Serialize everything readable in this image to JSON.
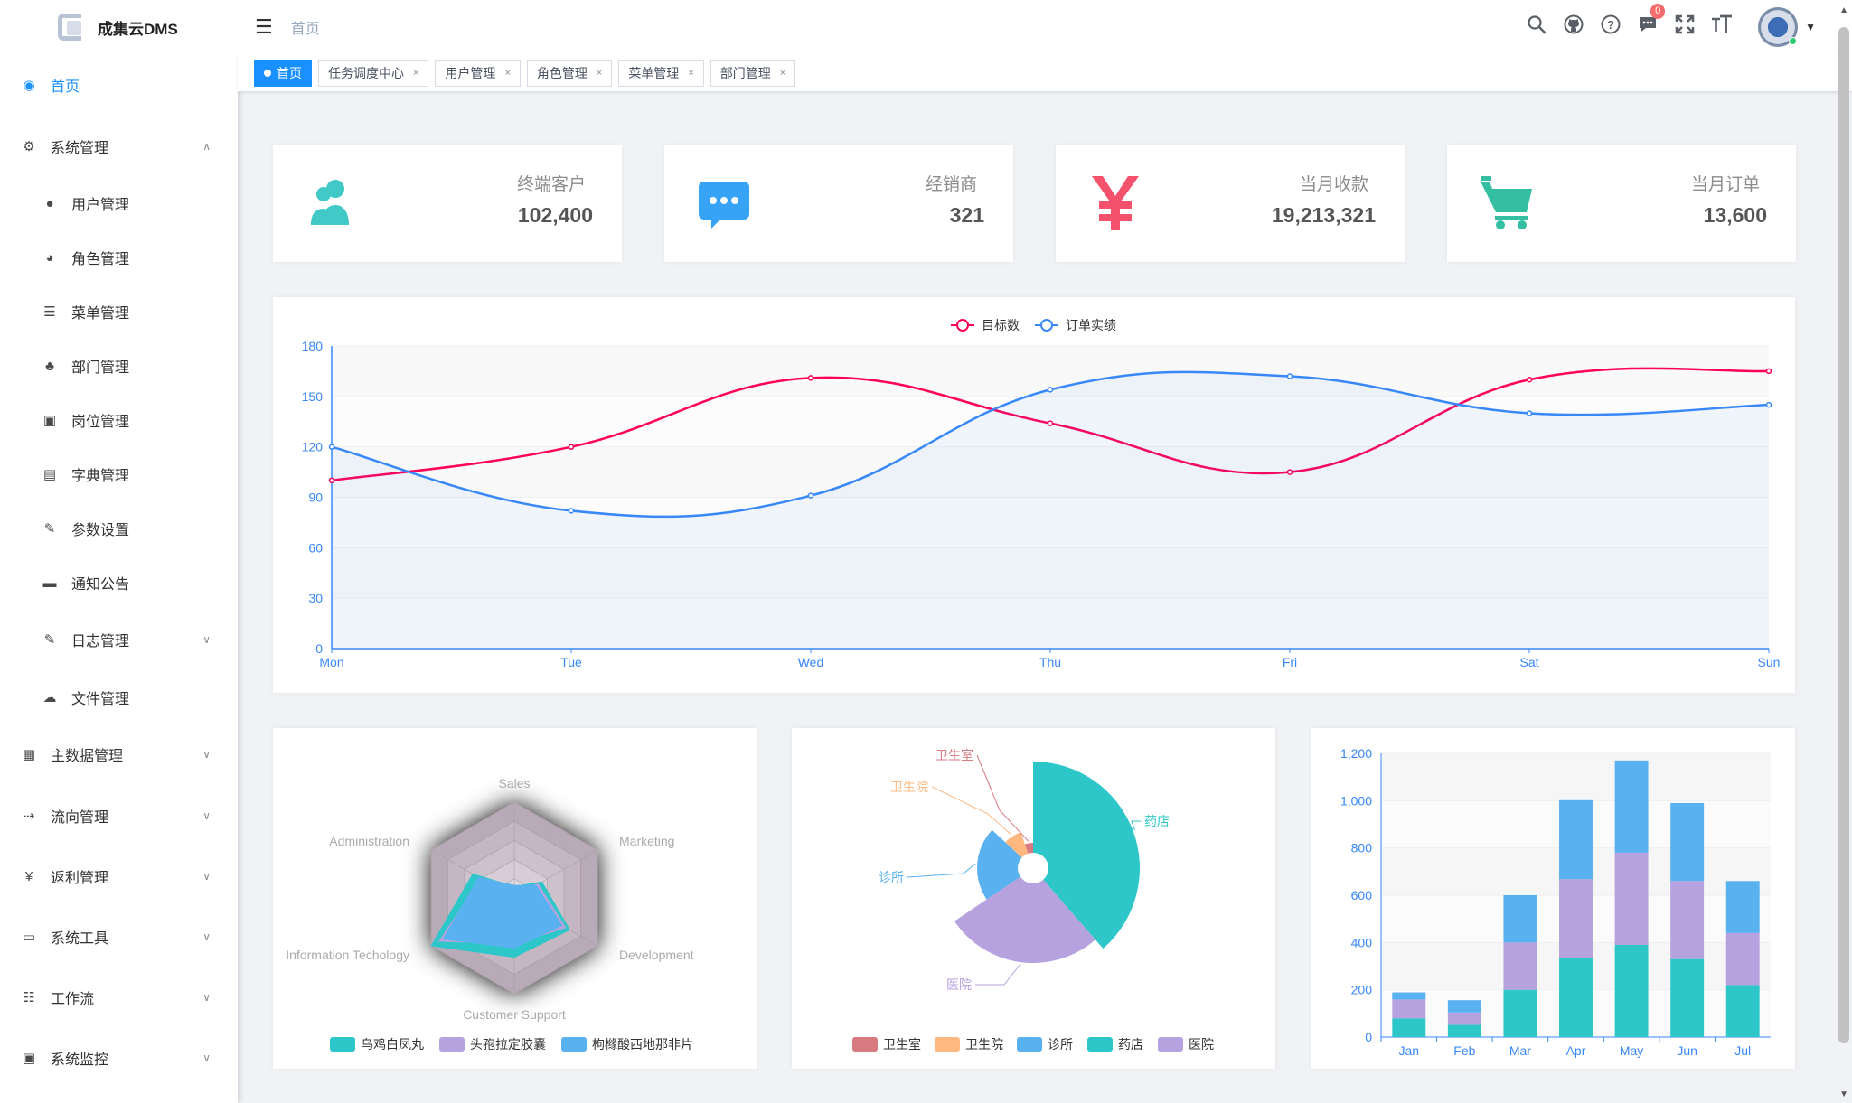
{
  "app": {
    "name": "成集云DMS"
  },
  "header": {
    "breadcrumb": "首页",
    "badge_count": "0"
  },
  "sidebar": {
    "items": [
      {
        "label": "首页",
        "icon": "dashboard-icon",
        "glyph": "◉",
        "level": "top",
        "active": true
      },
      {
        "label": "系统管理",
        "icon": "gear-icon",
        "glyph": "⚙",
        "level": "top",
        "arrow": "∧"
      },
      {
        "label": "用户管理",
        "icon": "user-icon",
        "glyph": "●",
        "level": "sub"
      },
      {
        "label": "角色管理",
        "icon": "role-icon",
        "glyph": "◕",
        "level": "sub"
      },
      {
        "label": "菜单管理",
        "icon": "tree-table-icon",
        "glyph": "☰",
        "level": "sub"
      },
      {
        "label": "部门管理",
        "icon": "org-tree-icon",
        "glyph": "♣",
        "level": "sub"
      },
      {
        "label": "岗位管理",
        "icon": "post-icon",
        "glyph": "▣",
        "level": "sub"
      },
      {
        "label": "字典管理",
        "icon": "dict-icon",
        "glyph": "▤",
        "level": "sub"
      },
      {
        "label": "参数设置",
        "icon": "edit-icon",
        "glyph": "✎",
        "level": "sub"
      },
      {
        "label": "通知公告",
        "icon": "message-icon",
        "glyph": "▬",
        "level": "sub"
      },
      {
        "label": "日志管理",
        "icon": "log-icon",
        "glyph": "✎",
        "level": "sub",
        "arrow": "∨"
      },
      {
        "label": "文件管理",
        "icon": "cloud-upload-icon",
        "glyph": "☁",
        "level": "sub"
      },
      {
        "label": "主数据管理",
        "icon": "master-data-icon",
        "glyph": "▦",
        "level": "top",
        "arrow": "∨"
      },
      {
        "label": "流向管理",
        "icon": "flow-icon",
        "glyph": "⇢",
        "level": "top",
        "arrow": "∨"
      },
      {
        "label": "返利管理",
        "icon": "yen-icon",
        "glyph": "¥",
        "level": "top",
        "arrow": "∨"
      },
      {
        "label": "系统工具",
        "icon": "tool-icon",
        "glyph": "▭",
        "level": "top",
        "arrow": "∨"
      },
      {
        "label": "工作流",
        "icon": "workflow-icon",
        "glyph": "☷",
        "level": "top",
        "arrow": "∨"
      },
      {
        "label": "系统监控",
        "icon": "monitor-icon",
        "glyph": "▣",
        "level": "top",
        "arrow": "∨"
      }
    ]
  },
  "tags": [
    {
      "label": "首页",
      "active": true
    },
    {
      "label": "任务调度中心"
    },
    {
      "label": "用户管理"
    },
    {
      "label": "角色管理"
    },
    {
      "label": "菜单管理"
    },
    {
      "label": "部门管理"
    }
  ],
  "stats": [
    {
      "label": "终端客户",
      "value": "102,400",
      "icon": "peoples-icon",
      "color": "#40c9c6"
    },
    {
      "label": "经销商",
      "value": "321",
      "icon": "message-bubble-icon",
      "color": "#36a3f7"
    },
    {
      "label": "当月收款",
      "value": "19,213,321",
      "icon": "yen-icon",
      "color": "#f4516c"
    },
    {
      "label": "当月订单",
      "value": "13,600",
      "icon": "shopping-cart-icon",
      "color": "#34bfa3"
    }
  ],
  "chart_data": [
    {
      "type": "line",
      "categories": [
        "Mon",
        "Tue",
        "Wed",
        "Thu",
        "Fri",
        "Sat",
        "Sun"
      ],
      "series": [
        {
          "name": "目标数",
          "values": [
            100,
            120,
            161,
            134,
            105,
            160,
            165
          ],
          "color": "#ff005a"
        },
        {
          "name": "订单实绩",
          "values": [
            120,
            82,
            91,
            154,
            162,
            140,
            145
          ],
          "color": "#3888fa"
        }
      ],
      "ylim": [
        0,
        180
      ],
      "yticks": [
        0,
        30,
        60,
        90,
        120,
        150,
        180
      ],
      "legend": "top-center",
      "smooth": true
    },
    {
      "type": "radar",
      "indicators": [
        "Sales",
        "Marketing",
        "Development",
        "Customer Support",
        "Information Techology",
        "Administration"
      ],
      "max": 20000,
      "series": [
        {
          "name": "乌鸡白凤丸",
          "values": [
            5000,
            14000,
            28000,
            26000,
            42000,
            21000
          ],
          "color": "#2ec7c9"
        },
        {
          "name": "头孢拉定胶囊",
          "values": [
            4000,
            12000,
            26000,
            20000,
            38000,
            17000
          ],
          "color": "#b6a2de"
        },
        {
          "name": "枸橼酸西地那非片",
          "values": [
            5500,
            11000,
            24000,
            22000,
            36000,
            18000
          ],
          "color": "#5ab1ef"
        }
      ],
      "legend": "bottom-center"
    },
    {
      "type": "pie",
      "rose": true,
      "slices": [
        {
          "name": "卫生室",
          "value": 320,
          "color": "#d87a80"
        },
        {
          "name": "卫生院",
          "value": 240,
          "color": "#ffb980"
        },
        {
          "name": "诊所",
          "value": 149,
          "color": "#5ab1ef"
        },
        {
          "name": "药店",
          "value": 100,
          "color": "#2ec7c9"
        },
        {
          "name": "医院",
          "value": 59,
          "color": "#b6a2de"
        }
      ],
      "legend": "bottom-center"
    },
    {
      "type": "bar",
      "stacked": true,
      "categories": [
        "Jan",
        "Feb",
        "Mar",
        "Apr",
        "May",
        "Jun",
        "Jul"
      ],
      "series": [
        {
          "name": "s1",
          "values": [
            79,
            52,
            200,
            334,
            390,
            330,
            220
          ],
          "color": "#2ec7c9"
        },
        {
          "name": "s2",
          "values": [
            80,
            52,
            200,
            334,
            390,
            330,
            220
          ],
          "color": "#b6a2de"
        },
        {
          "name": "s3",
          "values": [
            30,
            52,
            200,
            334,
            390,
            330,
            220
          ],
          "color": "#5ab1ef"
        }
      ],
      "ylim": [
        0,
        1200
      ],
      "yticks": [
        "0",
        "200",
        "400",
        "600",
        "800",
        "1,000",
        "1,200"
      ]
    }
  ]
}
